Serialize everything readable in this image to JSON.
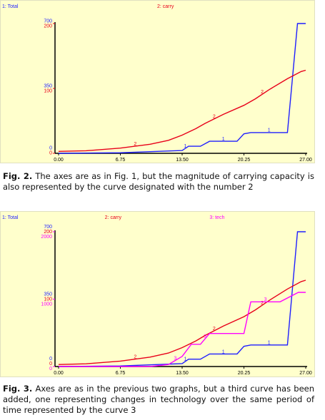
{
  "chart_data": [
    {
      "type": "line",
      "series": [
        {
          "name": "1: Total",
          "color": "#1f1fff",
          "curve_label": "1",
          "x": [
            0,
            6.75,
            13.5,
            14.2,
            15.5,
            16.5,
            19.5,
            20.25,
            21,
            25,
            26.1,
            27
          ],
          "values": [
            0,
            3,
            15,
            38,
            38,
            65,
            65,
            105,
            112,
            112,
            700,
            700
          ],
          "ylim": [
            0,
            700
          ],
          "yticks": [
            0,
            350,
            700
          ]
        },
        {
          "name": "2: carry",
          "color": "#e8001a",
          "curve_label": "2",
          "x": [
            0,
            3,
            6.75,
            10,
            12,
            13.5,
            15,
            16,
            18,
            20.25,
            21.5,
            23,
            25,
            26.5,
            27
          ],
          "values": [
            3,
            4,
            8,
            14,
            20,
            28,
            38,
            46,
            60,
            74,
            84,
            98,
            115,
            126,
            128
          ],
          "ylim": [
            0,
            200
          ],
          "yticks": [
            0,
            100,
            200
          ]
        }
      ],
      "xlim": [
        0,
        27
      ],
      "xticks": [
        {
          "value": 0,
          "label": "0.00"
        },
        6.75,
        {
          "value": 13.5,
          "label": "13.50"
        },
        20.25,
        {
          "value": 27,
          "label": "27.00"
        }
      ]
    },
    {
      "type": "line",
      "series": [
        {
          "name": "1: Total",
          "color": "#1f1fff",
          "curve_label": "1",
          "x": [
            0,
            6.75,
            13.5,
            14.2,
            15.5,
            16.5,
            19.5,
            20.25,
            21,
            25,
            26.1,
            27
          ],
          "values": [
            0,
            3,
            15,
            38,
            38,
            65,
            65,
            105,
            112,
            112,
            700,
            700
          ],
          "ylim": [
            0,
            700
          ],
          "yticks": [
            0,
            350,
            700
          ]
        },
        {
          "name": "2: carry",
          "color": "#e8001a",
          "curve_label": "2",
          "x": [
            0,
            3,
            6.75,
            10,
            12,
            13.5,
            15,
            16,
            18,
            20.25,
            21.5,
            23,
            25,
            26.5,
            27
          ],
          "values": [
            3,
            4,
            8,
            14,
            20,
            28,
            38,
            46,
            60,
            74,
            84,
            98,
            115,
            126,
            128
          ],
          "ylim": [
            0,
            200
          ],
          "yticks": [
            0,
            100,
            200
          ]
        },
        {
          "name": "3: tech",
          "color": "#ff00ff",
          "curve_label": "3",
          "x": [
            0,
            10,
            12,
            13.5,
            14.5,
            15.5,
            16.5,
            20.25,
            21,
            24.2,
            26.2,
            27
          ],
          "values": [
            0,
            0,
            30,
            150,
            330,
            330,
            490,
            490,
            960,
            960,
            1100,
            1100
          ],
          "ylim": [
            0,
            2000
          ],
          "yticks": [
            0,
            1000,
            2000
          ]
        }
      ],
      "xlim": [
        0,
        27
      ],
      "xticks": [
        {
          "value": 0,
          "label": "0.00"
        },
        6.75,
        {
          "value": 13.5,
          "label": "13.50"
        },
        20.25,
        {
          "value": 27,
          "label": "27.00"
        }
      ]
    }
  ],
  "captions": [
    {
      "label": "Fig. 2.",
      "text": "The axes are as in Fig. 1, but the magnitude of carrying capacity is also represented by the curve designated with the number 2"
    },
    {
      "label": "Fig. 3.",
      "text": "Axes are as in the previous two graphs, but a third curve has been added, one representing changes in technology over the same period of time represented by the curve 3"
    }
  ]
}
